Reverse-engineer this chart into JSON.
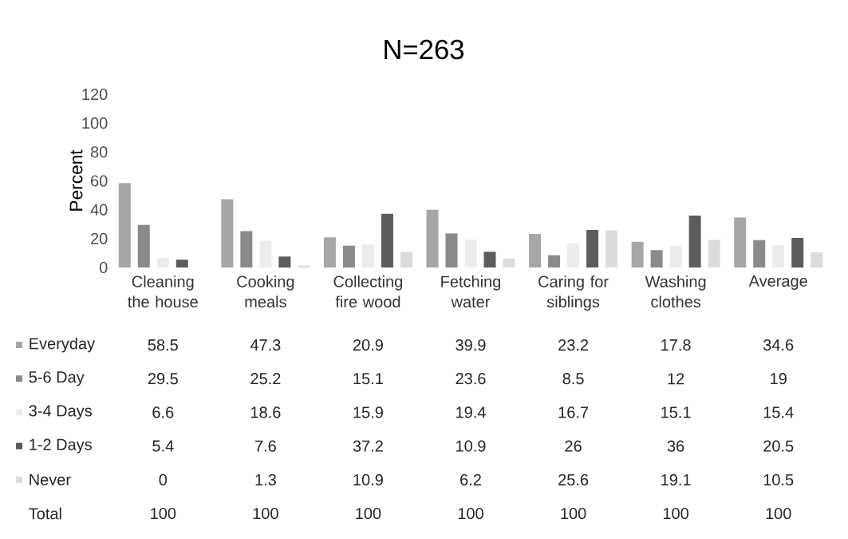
{
  "chart_data": {
    "type": "bar",
    "title": "N=263",
    "ylabel": "Percent",
    "categories": [
      "Cleaning the house",
      "Cooking meals",
      "Collecting fire wood",
      "Fetching water",
      "Caring for siblings",
      "Washing clothes",
      "Average"
    ],
    "series": [
      {
        "name": "Everyday",
        "color": "#a6a6a6",
        "values": [
          58.5,
          47.3,
          20.9,
          39.9,
          23.2,
          17.8,
          34.6
        ]
      },
      {
        "name": "5-6 Day",
        "color": "#8a8a8a",
        "values": [
          29.5,
          25.2,
          15.1,
          23.6,
          8.5,
          12,
          19
        ]
      },
      {
        "name": "3-4 Days",
        "color": "#ececec",
        "values": [
          6.6,
          18.6,
          15.9,
          19.4,
          16.7,
          15.1,
          15.4
        ]
      },
      {
        "name": "1-2 Days",
        "color": "#5c5c5c",
        "values": [
          5.4,
          7.6,
          37.2,
          10.9,
          26,
          36,
          20.5
        ]
      },
      {
        "name": "Never",
        "color": "#dcdcdc",
        "values": [
          0,
          1.3,
          10.9,
          6.2,
          25.6,
          19.1,
          10.5
        ]
      }
    ],
    "annotations": [
      "Total",
      "100",
      "100",
      "100",
      "100",
      "100",
      "100",
      "100"
    ],
    "ylim": [
      0,
      120
    ],
    "yticks": [
      0,
      20,
      40,
      60,
      80,
      100,
      120
    ],
    "data_labels": true,
    "legend": "bottom",
    "grid": false
  }
}
